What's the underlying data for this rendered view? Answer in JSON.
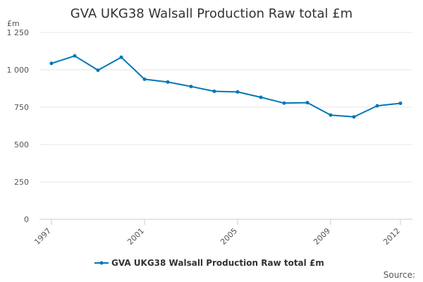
{
  "chart_data": {
    "type": "line",
    "title": "GVA UKG38 Walsall Production Raw total £m",
    "ylabel": "£m",
    "xlabel": "",
    "x": [
      1997,
      1998,
      1999,
      2000,
      2001,
      2002,
      2003,
      2004,
      2005,
      2006,
      2007,
      2008,
      2009,
      2010,
      2011,
      2012
    ],
    "series": [
      {
        "name": "GVA UKG38 Walsall Production Raw total £m",
        "color": "#0077b6",
        "values": [
          1043,
          1093,
          997,
          1084,
          937,
          918,
          888,
          856,
          852,
          816,
          777,
          780,
          697,
          685,
          759,
          776
        ]
      }
    ],
    "xticks": [
      1997,
      2001,
      2005,
      2009,
      2012
    ],
    "xtick_labels": [
      "1997",
      "2001",
      "2005",
      "2009",
      "2012"
    ],
    "xlim": [
      1997,
      2012
    ],
    "yticks": [
      0,
      250,
      500,
      750,
      1000,
      1250
    ],
    "ytick_labels": [
      "0",
      "250",
      "500",
      "750",
      "1 000",
      "1 250"
    ],
    "ylim": [
      0,
      1250
    ],
    "grid": true,
    "legend_position": "bottom-center",
    "source_label": "Source:"
  }
}
